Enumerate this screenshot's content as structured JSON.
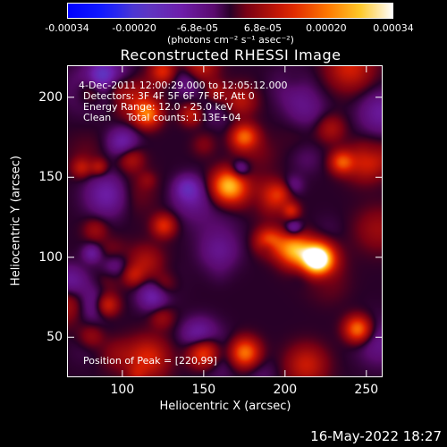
{
  "colorbar": {
    "tick_labels": [
      "-0.00034",
      "-0.00020",
      "-6.8e-05",
      "6.8e-05",
      "0.00020",
      "0.00034"
    ],
    "tick_values": [
      -0.00034,
      -0.0002,
      -6.8e-05,
      6.8e-05,
      0.0002,
      0.00034
    ],
    "range": [
      -0.00034,
      0.00034
    ],
    "units_label": "(photons cm⁻² s⁻¹ asec⁻²)"
  },
  "chart_data": {
    "type": "heatmap",
    "title": "Reconstructed RHESSI Image",
    "xlabel": "Heliocentric X (arcsec)",
    "ylabel": "Heliocentric Y (arcsec)",
    "xlim": [
      66,
      260
    ],
    "ylim": [
      25,
      220
    ],
    "x_ticks": [
      100,
      150,
      200,
      250
    ],
    "y_ticks": [
      50,
      100,
      150,
      200
    ],
    "peak": [
      220,
      99
    ],
    "annotations": {
      "time_range": "4-Dec-2011 12:00:29.000 to 12:05:12.000",
      "detectors": "Detectors: 3F 4F 5F 6F 7F 8F, Att 0",
      "energy": "Energy Range: 12.0 - 25.0 keV",
      "clean": "Clean     Total counts: 1.13E+04",
      "peak_label": "Position of Peak = [220,99]"
    }
  },
  "footer": {
    "date": "16-May-2022 18:27"
  }
}
